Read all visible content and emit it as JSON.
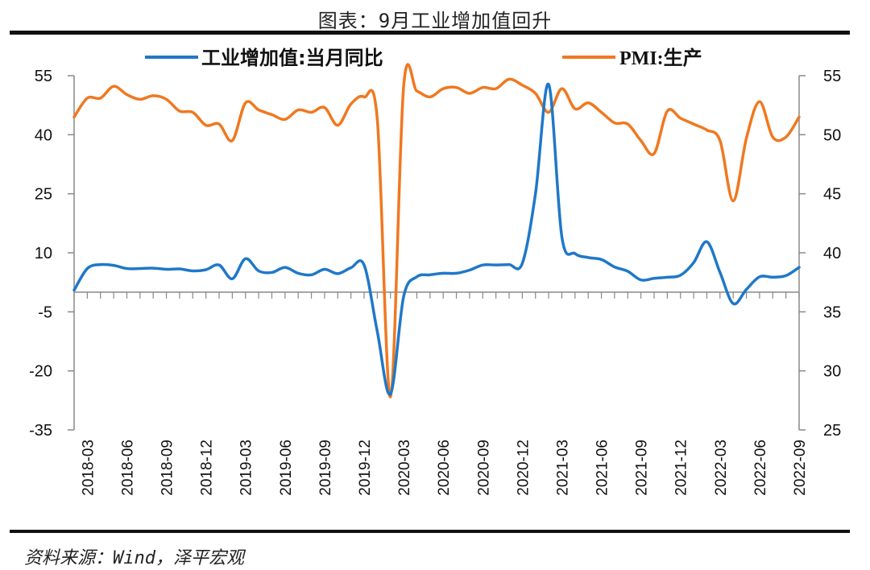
{
  "header": {
    "title": "图表：9月工业增加值回升"
  },
  "footer": {
    "source": "资料来源：Wind，泽平宏观"
  },
  "chart_data": {
    "type": "line",
    "title": "图表：9月工业增加值回升",
    "grid": false,
    "legend_placement": "top",
    "x": [
      "2018-02",
      "2018-03",
      "2018-04",
      "2018-05",
      "2018-06",
      "2018-07",
      "2018-08",
      "2018-09",
      "2018-10",
      "2018-11",
      "2018-12",
      "2019-01",
      "2019-02",
      "2019-03",
      "2019-04",
      "2019-05",
      "2019-06",
      "2019-07",
      "2019-08",
      "2019-09",
      "2019-10",
      "2019-11",
      "2019-12",
      "2020-01",
      "2020-02",
      "2020-03",
      "2020-04",
      "2020-05",
      "2020-06",
      "2020-07",
      "2020-08",
      "2020-09",
      "2020-10",
      "2020-11",
      "2020-12",
      "2021-01",
      "2021-02",
      "2021-03",
      "2021-04",
      "2021-05",
      "2021-06",
      "2021-07",
      "2021-08",
      "2021-09",
      "2021-10",
      "2021-11",
      "2021-12",
      "2022-01",
      "2022-02",
      "2022-03",
      "2022-04",
      "2022-05",
      "2022-06",
      "2022-07",
      "2022-08",
      "2022-09"
    ],
    "x_tick_labels": [
      "2018-03",
      "2018-06",
      "2018-09",
      "2018-12",
      "2019-03",
      "2019-06",
      "2019-09",
      "2019-12",
      "2020-03",
      "2020-06",
      "2020-09",
      "2020-12",
      "2021-03",
      "2021-06",
      "2021-09",
      "2021-12",
      "2022-03",
      "2022-06",
      "2022-09"
    ],
    "y_left": {
      "min": -35,
      "max": 55,
      "ticks": [
        "55",
        "40",
        "25",
        "10",
        "-5",
        "-20",
        "-35"
      ],
      "baseline": 0
    },
    "y_right": {
      "min": 25,
      "max": 55,
      "ticks": [
        "55",
        "50",
        "45",
        "40",
        "35",
        "30",
        "25"
      ]
    },
    "series": [
      {
        "name": "工业增加值:当月同比",
        "axis": "left",
        "color": "#1F78C8",
        "values": [
          0.5,
          6.0,
          7.0,
          6.8,
          6.0,
          6.0,
          6.1,
          5.8,
          5.9,
          5.4,
          5.7,
          6.9,
          3.4,
          8.5,
          5.4,
          5.0,
          6.3,
          4.8,
          4.4,
          5.8,
          4.7,
          6.2,
          6.9,
          -10.0,
          -25.9,
          -1.1,
          3.9,
          4.4,
          4.8,
          4.8,
          5.6,
          6.9,
          6.9,
          7.0,
          7.3,
          25.0,
          52.8,
          14.1,
          9.8,
          8.8,
          8.3,
          6.4,
          5.3,
          3.1,
          3.5,
          3.8,
          4.3,
          7.5,
          12.8,
          5.0,
          -2.9,
          0.7,
          3.9,
          3.8,
          4.2,
          6.3
        ]
      },
      {
        "name": "PMI:生产",
        "axis": "right",
        "color": "#F07820",
        "values": [
          51.5,
          53.1,
          53.1,
          54.1,
          53.4,
          53.0,
          53.3,
          53.0,
          52.0,
          51.9,
          50.8,
          50.9,
          49.5,
          52.7,
          52.1,
          51.7,
          51.3,
          52.1,
          51.9,
          52.3,
          50.8,
          52.6,
          53.2,
          51.3,
          27.8,
          54.1,
          53.7,
          53.2,
          53.9,
          54.0,
          53.5,
          54.0,
          53.9,
          54.7,
          54.2,
          53.5,
          51.9,
          53.9,
          52.2,
          52.7,
          51.9,
          51.0,
          50.9,
          49.5,
          48.4,
          52.0,
          51.4,
          50.9,
          50.4,
          49.5,
          44.4,
          49.7,
          52.8,
          49.8,
          49.8,
          51.5
        ]
      }
    ]
  }
}
